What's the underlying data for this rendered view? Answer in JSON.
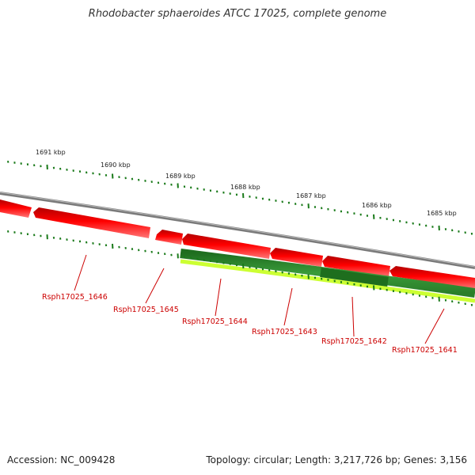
{
  "title": "Rhodobacter sphaeroides ATCC 17025, complete genome",
  "footer": {
    "accession": "Accession: NC_009428",
    "summary": "Topology: circular; Length: 3,217,726 bp; Genes: 3,156"
  },
  "colors": {
    "backbone": "#888888",
    "forward_gene": "#ee0000",
    "reverse_gene_dark": "#2e8b2e",
    "reverse_gene_light": "#ccff33",
    "tick": "#1a7a1a",
    "label": "#cc0000"
  },
  "scale_labels": [
    "1691 kbp",
    "1690 kbp",
    "1689 kbp",
    "1688 kbp",
    "1687 kbp",
    "1686 kbp",
    "1685 kbp"
  ],
  "gene_labels": [
    "Rsph17025_1646",
    "Rsph17025_1645",
    "Rsph17025_1644",
    "Rsph17025_1643",
    "Rsph17025_1642",
    "Rsph17025_1641"
  ]
}
